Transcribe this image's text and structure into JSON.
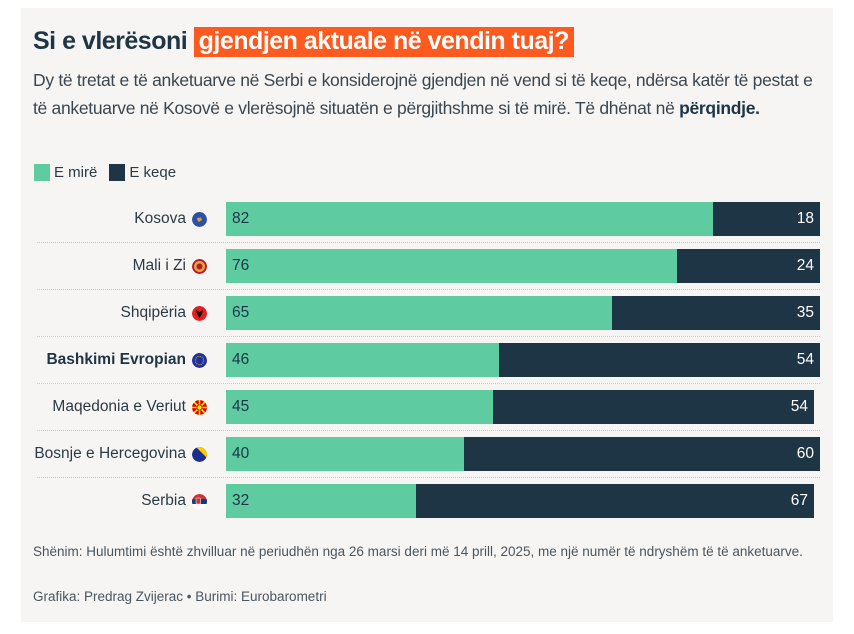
{
  "header": {
    "title_plain": "Si e vlerësoni",
    "title_highlight": "gjendjen aktuale në vendin tuaj?",
    "subtitle_text": "Dy të tretat e të anketuarve në Serbi e konsiderojnë gjendjen në vend si të keqe, ndërsa katër të pestat e të anketuarve në Kosovë e vlerësojnë situatën e përgjithshme si të mirë. Të dhënat në ",
    "subtitle_bold": "përqindje."
  },
  "colors": {
    "good": "#5ecba1",
    "bad": "#1d3545",
    "highlight": "#fc5a1e",
    "background": "#f7f5f3"
  },
  "chart_data": {
    "type": "bar",
    "orientation": "horizontal",
    "stacked": true,
    "title": "Si e vlerësoni gjendjen aktuale në vendin tuaj?",
    "unit": "percent",
    "xlim": [
      0,
      100
    ],
    "grid": false,
    "legend_position": "top-left",
    "legend": [
      {
        "label": "E mirë",
        "color": "#5ecba1"
      },
      {
        "label": "E keqe",
        "color": "#1d3545"
      }
    ],
    "categories": [
      "Kosova",
      "Mali i Zi",
      "Shqipëria",
      "Bashkimi Evropian",
      "Maqedonia e Veriut",
      "Bosnje e Hercegovina",
      "Serbia"
    ],
    "emphasized_category": "Bashkimi Evropian",
    "flags": [
      "kosovo-flag",
      "montenegro-flag",
      "albania-flag",
      "eu-flag",
      "north-macedonia-flag",
      "bosnia-flag",
      "serbia-flag"
    ],
    "series": [
      {
        "name": "E mirë",
        "values": [
          82,
          76,
          65,
          46,
          45,
          40,
          32
        ]
      },
      {
        "name": "E keqe",
        "values": [
          18,
          24,
          35,
          54,
          54,
          60,
          67
        ]
      }
    ]
  },
  "footer": {
    "note": "Shënim: Hulumtimi është zhvilluar në periudhën nga 26 marsi deri më 14 prill, 2025, me një numër të ndryshëm të të anketuarve.",
    "credit": "Grafika: Predrag Zvijerac • Burimi: Eurobarometri"
  }
}
